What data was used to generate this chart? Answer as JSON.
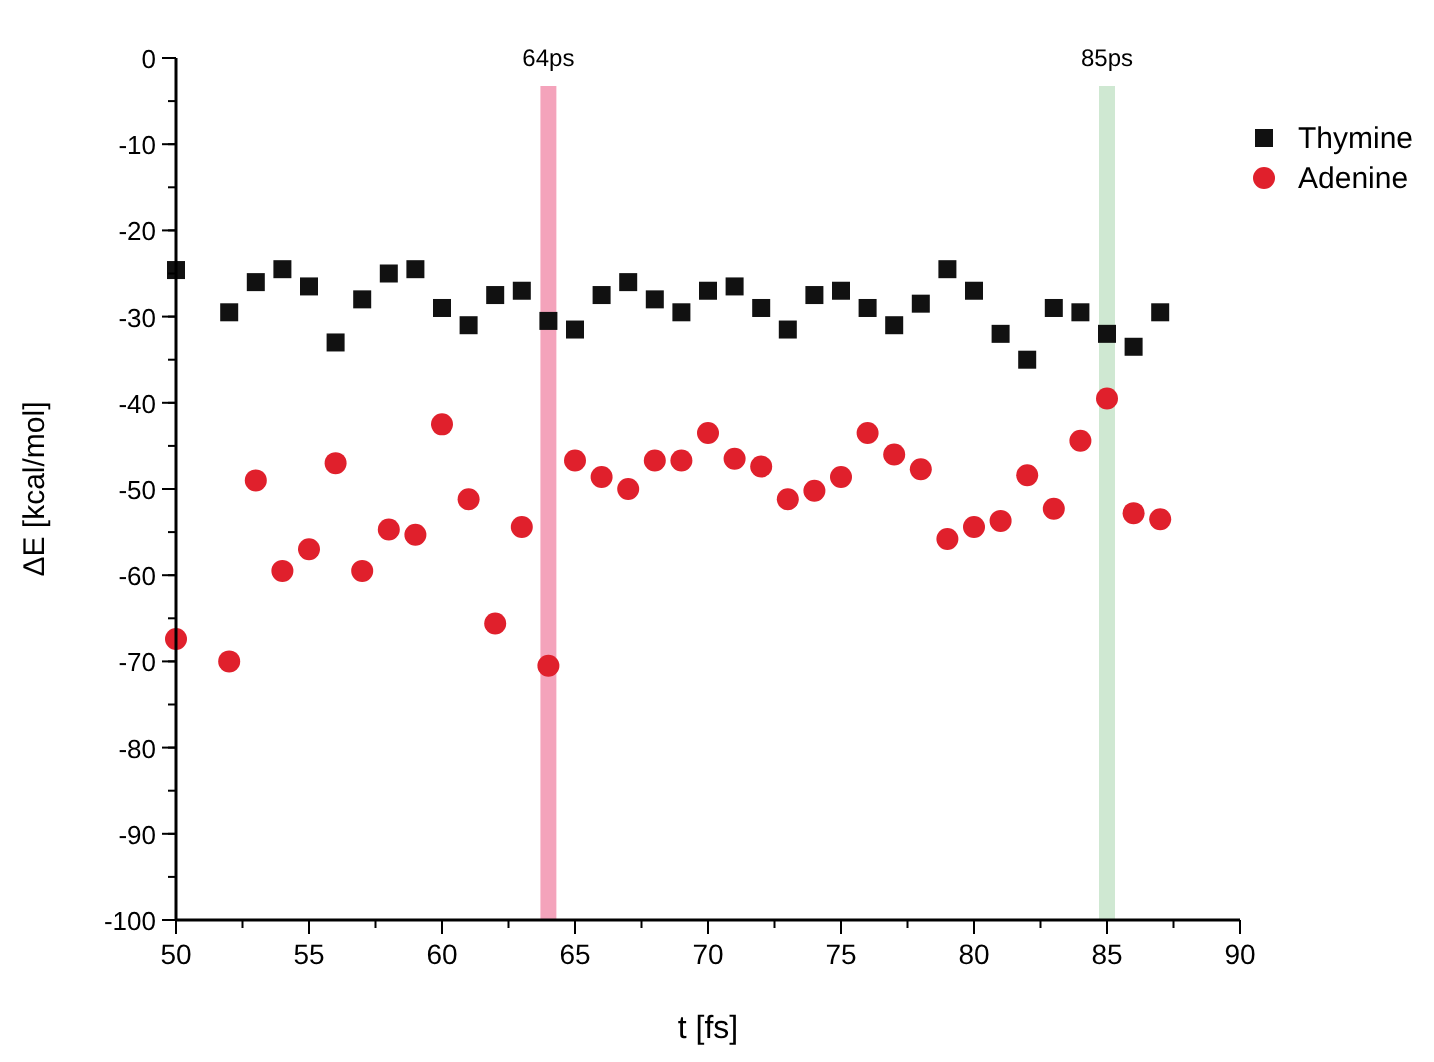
{
  "chart_data": {
    "type": "scatter",
    "xlabel": "t [fs]",
    "ylabel": "ΔE [kcal/mol]",
    "xlim": [
      50,
      90
    ],
    "xticks": [
      50,
      55,
      60,
      65,
      70,
      75,
      80,
      85,
      90
    ],
    "ylim": [
      -100,
      0
    ],
    "yticks": [
      -100,
      -90,
      -80,
      -70,
      -60,
      -50,
      -40,
      -30,
      -20,
      -10,
      0
    ],
    "x": [
      50,
      52,
      53,
      54,
      55,
      56,
      57,
      58,
      59,
      60,
      61,
      62,
      63,
      64,
      65,
      66,
      67,
      68,
      69,
      70,
      71,
      72,
      73,
      74,
      75,
      76,
      77,
      78,
      79,
      80,
      81,
      82,
      83,
      84,
      85,
      86,
      87
    ],
    "series": [
      {
        "name": "Thymine",
        "color": "#111111",
        "marker": "square",
        "values": [
          -24.6,
          -29.5,
          -26,
          -24.5,
          -26.5,
          -33,
          -28,
          -25,
          -24.5,
          -29,
          -31,
          -27.5,
          -27,
          -30.5,
          -31.5,
          -27.5,
          -26,
          -28,
          -29.5,
          -27,
          -26.5,
          -29,
          -31.5,
          -27.5,
          -27,
          -29,
          -31,
          -28.5,
          -24.5,
          -27,
          -32,
          -35,
          -29,
          -29.5,
          -32,
          -33.5,
          -29.5
        ]
      },
      {
        "name": "Adenine",
        "color": "#e0202c",
        "marker": "circle",
        "values": [
          -67.4,
          -70,
          -49,
          -59.5,
          -57,
          -47,
          -59.5,
          -54.7,
          -55.3,
          -42.5,
          -51.2,
          -65.6,
          -54.4,
          -70.5,
          -46.7,
          -48.6,
          -50,
          -46.7,
          -46.7,
          -43.5,
          -46.5,
          -47.4,
          -51.2,
          -50.2,
          -48.6,
          -43.5,
          -46,
          -47.7,
          -55.8,
          -54.4,
          -53.7,
          -48.4,
          -52.3,
          -44.4,
          -39.5,
          -52.8,
          -53.5
        ]
      }
    ],
    "bands": [
      {
        "axis": "x",
        "from": 63.7,
        "to": 64.3,
        "label": "64ps",
        "color": "#f4a3bb"
      },
      {
        "axis": "x",
        "from": 84.7,
        "to": 85.3,
        "label": "85ps",
        "color": "#cfe8d2"
      }
    ],
    "grid": false,
    "legend": "top right"
  }
}
